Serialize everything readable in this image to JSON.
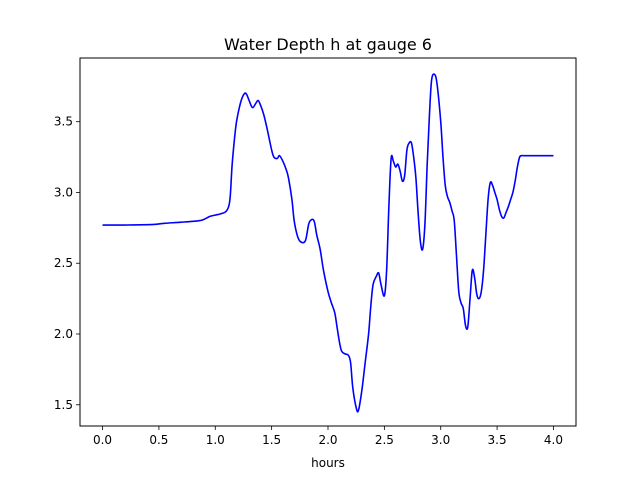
{
  "chart_data": {
    "type": "line",
    "title": "Water Depth h at gauge 6",
    "xlabel": "hours",
    "ylabel": "",
    "xlim": [
      -0.2,
      4.2
    ],
    "ylim": [
      1.35,
      3.95
    ],
    "xticks": [
      0.0,
      0.5,
      1.0,
      1.5,
      2.0,
      2.5,
      3.0,
      3.5,
      4.0
    ],
    "xtick_labels": [
      "0.0",
      "0.5",
      "1.0",
      "1.5",
      "2.0",
      "2.5",
      "3.0",
      "3.5",
      "4.0"
    ],
    "yticks": [
      1.5,
      2.0,
      2.5,
      3.0,
      3.5
    ],
    "ytick_labels": [
      "1.5",
      "2.0",
      "2.5",
      "3.0",
      "3.5"
    ],
    "grid": false,
    "series": [
      {
        "color": "#0000ff",
        "x": [
          0.0,
          0.2,
          0.4,
          0.47,
          0.55,
          0.7,
          0.85,
          0.9,
          0.95,
          1.0,
          1.05,
          1.1,
          1.13,
          1.15,
          1.18,
          1.2,
          1.23,
          1.26,
          1.28,
          1.3,
          1.33,
          1.36,
          1.38,
          1.4,
          1.43,
          1.46,
          1.5,
          1.52,
          1.55,
          1.57,
          1.6,
          1.63,
          1.65,
          1.68,
          1.7,
          1.73,
          1.76,
          1.8,
          1.83,
          1.86,
          1.88,
          1.9,
          1.93,
          1.96,
          2.0,
          2.03,
          2.06,
          2.08,
          2.1,
          2.12,
          2.15,
          2.18,
          2.2,
          2.22,
          2.25,
          2.27,
          2.3,
          2.33,
          2.36,
          2.38,
          2.4,
          2.43,
          2.45,
          2.47,
          2.5,
          2.52,
          2.54,
          2.56,
          2.58,
          2.6,
          2.62,
          2.64,
          2.66,
          2.68,
          2.7,
          2.72,
          2.74,
          2.76,
          2.78,
          2.8,
          2.82,
          2.84,
          2.86,
          2.88,
          2.9,
          2.92,
          2.95,
          2.97,
          3.0,
          3.02,
          3.04,
          3.06,
          3.08,
          3.1,
          3.12,
          3.14,
          3.16,
          3.18,
          3.2,
          3.22,
          3.24,
          3.26,
          3.28,
          3.3,
          3.32,
          3.34,
          3.36,
          3.38,
          3.4,
          3.42,
          3.44,
          3.46,
          3.48,
          3.5,
          3.52,
          3.54,
          3.56,
          3.58,
          3.6,
          3.62,
          3.64,
          3.66,
          3.68,
          3.7,
          3.72,
          3.74,
          3.76,
          3.78,
          3.8,
          3.82,
          3.84,
          3.86,
          3.88,
          3.9,
          3.92,
          3.94,
          3.96,
          3.98,
          4.0
        ],
        "y": [
          2.77,
          2.77,
          2.772,
          2.775,
          2.782,
          2.79,
          2.8,
          2.81,
          2.83,
          2.84,
          2.85,
          2.87,
          2.95,
          3.2,
          3.45,
          3.55,
          3.65,
          3.7,
          3.69,
          3.65,
          3.6,
          3.63,
          3.65,
          3.62,
          3.55,
          3.45,
          3.3,
          3.25,
          3.24,
          3.26,
          3.22,
          3.16,
          3.1,
          2.95,
          2.8,
          2.69,
          2.65,
          2.66,
          2.78,
          2.81,
          2.79,
          2.7,
          2.6,
          2.45,
          2.3,
          2.22,
          2.15,
          2.05,
          1.95,
          1.88,
          1.86,
          1.85,
          1.8,
          1.62,
          1.48,
          1.46,
          1.6,
          1.8,
          2.0,
          2.2,
          2.35,
          2.41,
          2.43,
          2.35,
          2.27,
          2.45,
          2.9,
          3.24,
          3.22,
          3.18,
          3.2,
          3.15,
          3.08,
          3.12,
          3.3,
          3.35,
          3.35,
          3.25,
          3.1,
          2.85,
          2.65,
          2.6,
          2.78,
          3.2,
          3.55,
          3.8,
          3.83,
          3.75,
          3.5,
          3.25,
          3.05,
          2.97,
          2.93,
          2.87,
          2.8,
          2.55,
          2.3,
          2.22,
          2.18,
          2.06,
          2.05,
          2.25,
          2.45,
          2.4,
          2.28,
          2.25,
          2.3,
          2.45,
          2.7,
          2.95,
          3.07,
          3.05,
          3.0,
          2.95,
          2.88,
          2.83,
          2.82,
          2.86,
          2.9,
          2.95,
          3.0,
          3.08,
          3.18,
          3.25,
          3.26,
          3.26,
          3.26,
          3.26,
          3.26,
          3.26,
          3.26,
          3.26,
          3.26,
          3.26,
          3.26,
          3.26,
          3.26,
          3.26,
          3.26
        ]
      }
    ]
  }
}
